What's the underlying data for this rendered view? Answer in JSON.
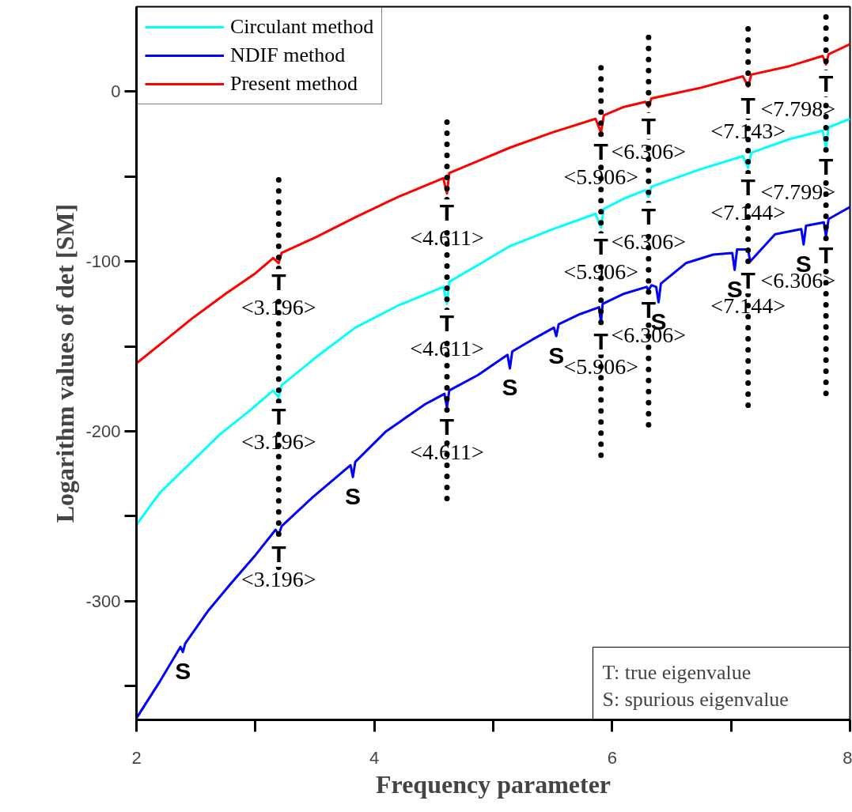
{
  "chart_data": {
    "type": "line",
    "xlabel": "Frequency parameter",
    "ylabel": "Logarithm values of det [SM]",
    "xlim": [
      2,
      8
    ],
    "ylim": [
      -370,
      50
    ],
    "xticks": [
      2,
      {
        "value": 3,
        "label": null
      },
      4,
      {
        "value": 5,
        "label": null
      },
      6,
      {
        "value": 7,
        "label": null
      },
      8
    ],
    "yticks": [
      {
        "value": -350,
        "label": null
      },
      -300,
      {
        "value": -250,
        "label": null
      },
      -200,
      {
        "value": -150,
        "label": null
      },
      -100,
      {
        "value": -50,
        "label": null
      },
      0
    ],
    "grid": false,
    "legend": "top left",
    "line_style": "solid",
    "marker": "none",
    "series": [
      {
        "name": "Circulant method",
        "color": "#00ffff",
        "x": [
          2,
          2.2,
          2.45,
          2.7,
          2.95,
          3.15,
          3.196,
          3.22,
          3.5,
          3.84,
          4.2,
          4.58,
          4.611,
          4.63,
          4.9,
          5.14,
          5.5,
          5.86,
          5.906,
          5.93,
          6.1,
          6.28,
          6.306,
          6.33,
          6.73,
          7.1,
          7.143,
          7.17,
          7.49,
          7.77,
          7.798,
          7.82,
          8
        ],
        "values": [
          -255,
          -236,
          -219,
          -202,
          -188,
          -176,
          -180,
          -173,
          -157,
          -139,
          -126,
          -115,
          -125,
          -112,
          -101,
          -91,
          -81,
          -72,
          -80,
          -69,
          -63,
          -58,
          -62,
          -56,
          -46,
          -38,
          -45,
          -36,
          -28,
          -23,
          -33,
          -21,
          -16
        ]
      },
      {
        "name": "NDIF method",
        "color": "#0000ff",
        "x": [
          2,
          2.2,
          2.37,
          2.39,
          2.41,
          2.6,
          2.79,
          3.0,
          3.17,
          3.196,
          3.22,
          3.48,
          3.8,
          3.82,
          3.84,
          4.1,
          4.43,
          4.59,
          4.611,
          4.63,
          4.87,
          5.12,
          5.14,
          5.16,
          5.33,
          5.51,
          5.53,
          5.55,
          5.73,
          5.89,
          5.906,
          5.92,
          6.1,
          6.29,
          6.306,
          6.33,
          6.37,
          6.39,
          6.41,
          6.62,
          6.85,
          7.01,
          7.03,
          7.05,
          7.12,
          7.143,
          7.16,
          7.37,
          7.59,
          7.61,
          7.63,
          7.78,
          7.798,
          7.82,
          8
        ],
        "values": [
          -369,
          -347,
          -327,
          -330,
          -325,
          -306,
          -290,
          -273,
          -258,
          -261,
          -256,
          -239,
          -220,
          -227,
          -218,
          -200,
          -184,
          -178,
          -186,
          -176,
          -167,
          -155,
          -163,
          -153,
          -146,
          -139,
          -144,
          -137,
          -131,
          -127,
          -136,
          -125,
          -119,
          -115,
          -117,
          -114,
          -115,
          -124,
          -113,
          -101,
          -96,
          -95,
          -105,
          -93,
          -93,
          -93,
          -100,
          -84,
          -81,
          -90,
          -79,
          -77,
          -85,
          -75,
          -68
        ]
      },
      {
        "name": "Present method",
        "color": "#ff0000",
        "x": [
          2,
          2.25,
          2.46,
          2.75,
          3.0,
          3.15,
          3.196,
          3.22,
          3.5,
          3.84,
          4.2,
          4.58,
          4.611,
          4.63,
          4.9,
          5.14,
          5.5,
          5.86,
          5.906,
          5.93,
          6.1,
          6.28,
          6.306,
          6.33,
          6.73,
          7.1,
          7.143,
          7.17,
          7.49,
          7.77,
          7.798,
          7.82,
          8
        ],
        "values": [
          -160,
          -146,
          -134,
          -119,
          -107,
          -98,
          -101,
          -95,
          -86,
          -74,
          -62,
          -51,
          -60,
          -48,
          -40,
          -33,
          -24,
          -16,
          -24,
          -14,
          -9,
          -6,
          -9,
          -4,
          2,
          9,
          3,
          10,
          15,
          21,
          16,
          22,
          28
        ]
      },
      {
        "color": "#000000",
        "line_style": "dotted",
        "x": [
          3.196,
          3.196
        ],
        "values": [
          -52,
          -283
        ]
      },
      {
        "color": "#000000",
        "line_style": "dotted",
        "x": [
          4.611,
          4.611
        ],
        "values": [
          -18,
          -243
        ]
      },
      {
        "color": "#000000",
        "line_style": "dotted",
        "x": [
          5.906,
          5.906
        ],
        "values": [
          14,
          -218
        ]
      },
      {
        "color": "#000000",
        "line_style": "dotted",
        "x": [
          6.306,
          6.306
        ],
        "values": [
          32,
          -200
        ]
      },
      {
        "color": "#000000",
        "line_style": "dotted",
        "x": [
          7.143,
          7.143
        ],
        "values": [
          37,
          -188
        ]
      },
      {
        "color": "#000000",
        "line_style": "dotted",
        "x": [
          7.798,
          7.798
        ],
        "values": [
          44,
          -181
        ]
      }
    ],
    "annotations": [
      {
        "text": "T",
        "x": 3.196,
        "y": -101
      },
      {
        "text": "<3.196>",
        "x": 3.196,
        "y": -101
      },
      {
        "text": "T",
        "x": 3.196,
        "y": -180
      },
      {
        "text": "<3.196>",
        "x": 3.196,
        "y": -180
      },
      {
        "text": "T",
        "x": 3.196,
        "y": -261
      },
      {
        "text": "<3.196>",
        "x": 3.196,
        "y": -261
      },
      {
        "text": "T",
        "x": 4.611,
        "y": -60
      },
      {
        "text": "<4.611>",
        "x": 4.611,
        "y": -60
      },
      {
        "text": "T",
        "x": 4.611,
        "y": -125
      },
      {
        "text": "<4.611>",
        "x": 4.611,
        "y": -125
      },
      {
        "text": "T",
        "x": 4.611,
        "y": -186
      },
      {
        "text": "<4.611>",
        "x": 4.611,
        "y": -186
      },
      {
        "text": "T",
        "x": 5.906,
        "y": -24
      },
      {
        "text": "<5.906>",
        "x": 5.906,
        "y": -24
      },
      {
        "text": "T",
        "x": 6.306,
        "y": -9
      },
      {
        "text": "<6.306>",
        "x": 6.306,
        "y": -9
      },
      {
        "text": "T",
        "x": 5.906,
        "y": -80
      },
      {
        "text": "<5.906>",
        "x": 5.906,
        "y": -80
      },
      {
        "text": "T",
        "x": 6.306,
        "y": -62
      },
      {
        "text": "<6.306>",
        "x": 6.306,
        "y": -62
      },
      {
        "text": "T",
        "x": 5.906,
        "y": -136
      },
      {
        "text": "<5.906>",
        "x": 5.906,
        "y": -136
      },
      {
        "text": "T",
        "x": 6.306,
        "y": -117
      },
      {
        "text": "<6.306>",
        "x": 6.306,
        "y": -117
      },
      {
        "text": "T",
        "x": 7.143,
        "y": 3
      },
      {
        "text": "<7.143>",
        "x": 7.143,
        "y": 3
      },
      {
        "text": "T",
        "x": 7.143,
        "y": -45
      },
      {
        "text": "<7.144>",
        "x": 7.143,
        "y": -45
      },
      {
        "text": "T",
        "x": 7.143,
        "y": -100
      },
      {
        "text": "<7.144>",
        "x": 7.143,
        "y": -100
      },
      {
        "text": "T",
        "x": 7.798,
        "y": 16
      },
      {
        "text": "<7.798>",
        "x": 7.798,
        "y": 16
      },
      {
        "text": "T",
        "x": 7.798,
        "y": -33
      },
      {
        "text": "<7.799>",
        "x": 7.798,
        "y": -33
      },
      {
        "text": "T",
        "x": 7.798,
        "y": -85
      },
      {
        "text": "<6.306>",
        "x": 7.798,
        "y": -85
      },
      {
        "text": "S",
        "x": 2.39,
        "y": -330
      },
      {
        "text": "S",
        "x": 3.82,
        "y": -227
      },
      {
        "text": "S",
        "x": 5.14,
        "y": -163
      },
      {
        "text": "S",
        "x": 5.53,
        "y": -144
      },
      {
        "text": "S",
        "x": 6.39,
        "y": -124
      },
      {
        "text": "S",
        "x": 7.03,
        "y": -105
      },
      {
        "text": "S",
        "x": 7.61,
        "y": -90
      },
      "T: true eigenvalue",
      "S: spurious eigenvalue"
    ]
  }
}
